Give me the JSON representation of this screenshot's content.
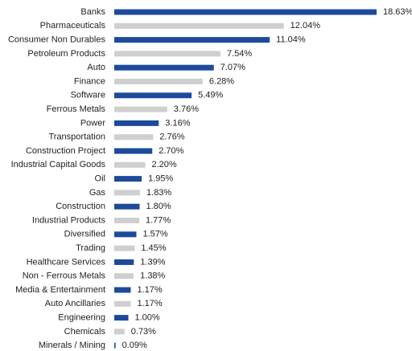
{
  "chart_data": {
    "type": "bar",
    "orientation": "horizontal",
    "categories": [
      "Banks",
      "Pharmaceuticals",
      "Consumer Non Durables",
      "Petroleum Products",
      "Auto",
      "Finance",
      "Software",
      "Ferrous Metals",
      "Power",
      "Transportation",
      "Construction Project",
      "Industrial Capital Goods",
      "Oil",
      "Gas",
      "Construction",
      "Industrial Products",
      "Diversified",
      "Trading",
      "Healthcare Services",
      "Non - Ferrous Metals",
      "Media & Entertainment",
      "Auto Ancillaries",
      "Engineering",
      "Chemicals",
      "Minerals / Mining"
    ],
    "values": [
      18.63,
      12.04,
      11.04,
      7.54,
      7.07,
      6.28,
      5.49,
      3.76,
      3.16,
      2.76,
      2.7,
      2.2,
      1.95,
      1.83,
      1.8,
      1.77,
      1.57,
      1.45,
      1.39,
      1.38,
      1.17,
      1.17,
      1.0,
      0.73,
      0.09
    ],
    "value_labels": [
      "18.63%",
      "12.04%",
      "11.04%",
      "7.54%",
      "7.07%",
      "6.28%",
      "5.49%",
      "3.76%",
      "3.16%",
      "2.76%",
      "2.70%",
      "2.20%",
      "1.95%",
      "1.83%",
      "1.80%",
      "1.77%",
      "1.57%",
      "1.45%",
      "1.39%",
      "1.38%",
      "1.17%",
      "1.17%",
      "1.00%",
      "0.73%",
      "0.09%"
    ],
    "colors": [
      "#1d4a9a",
      "#cfcfcf",
      "#1d4a9a",
      "#cfcfcf",
      "#1d4a9a",
      "#cfcfcf",
      "#1d4a9a",
      "#cfcfcf",
      "#1d4a9a",
      "#cfcfcf",
      "#1d4a9a",
      "#cfcfcf",
      "#1d4a9a",
      "#cfcfcf",
      "#1d4a9a",
      "#cfcfcf",
      "#1d4a9a",
      "#cfcfcf",
      "#1d4a9a",
      "#cfcfcf",
      "#1d4a9a",
      "#cfcfcf",
      "#1d4a9a",
      "#cfcfcf",
      "#1d4a9a"
    ]
  }
}
